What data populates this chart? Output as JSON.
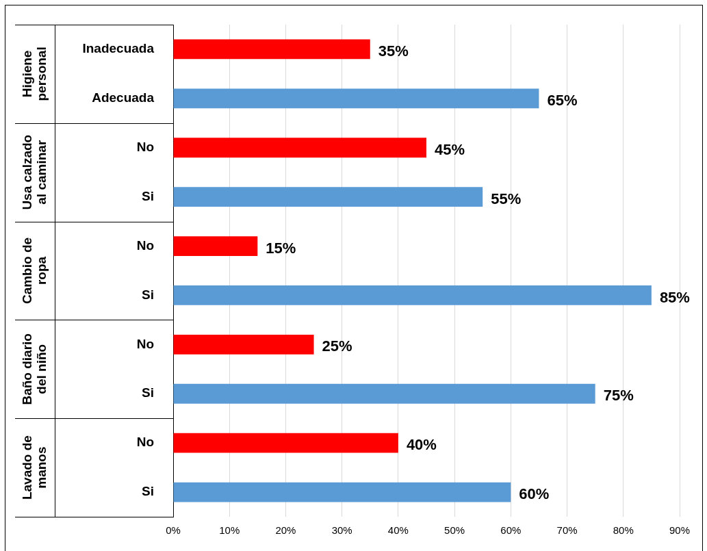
{
  "chart_data": {
    "type": "bar",
    "orientation": "horizontal",
    "categories": [
      "Inadecuada",
      "Adecuada",
      "No",
      "Si",
      "No",
      "Si",
      "No",
      "Si",
      "No",
      "Si"
    ],
    "values": [
      35,
      65,
      45,
      55,
      15,
      85,
      25,
      75,
      40,
      60
    ],
    "colors": [
      "#ff0000",
      "#5b9bd5",
      "#ff0000",
      "#5b9bd5",
      "#ff0000",
      "#5b9bd5",
      "#ff0000",
      "#5b9bd5",
      "#ff0000",
      "#5b9bd5"
    ],
    "value_labels": [
      "35%",
      "65%",
      "45%",
      "55%",
      "15%",
      "85%",
      "25%",
      "75%",
      "40%",
      "60%"
    ],
    "xlim": [
      0,
      90
    ],
    "xticks": [
      {
        "value": 0,
        "label": "0%"
      },
      {
        "value": 10,
        "label": "10%"
      },
      {
        "value": 20,
        "label": "20%"
      },
      {
        "value": 30,
        "label": "30%"
      },
      {
        "value": 40,
        "label": "40%"
      },
      {
        "value": 50,
        "label": "50%"
      },
      {
        "value": 60,
        "label": "60%"
      },
      {
        "value": 70,
        "label": "70%"
      },
      {
        "value": 80,
        "label": "80%"
      },
      {
        "value": 90,
        "label": "90%"
      }
    ],
    "grid": "x",
    "annotations": [
      "Higiene personal",
      "Usa calzado al caminar",
      "Cambio de ropa",
      "Baño diario del niño",
      "Lavado de manos"
    ]
  }
}
